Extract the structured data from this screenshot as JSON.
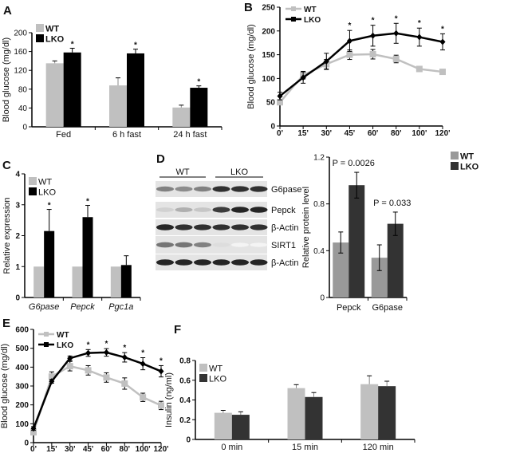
{
  "figure": {
    "panel_labels": [
      "A",
      "B",
      "C",
      "D",
      "E",
      "F"
    ]
  },
  "chart_data": [
    {
      "panel": "A",
      "type": "bar",
      "ylabel": "Blood glucose (mg/dl)",
      "ylim": [
        0,
        200
      ],
      "yticks": [
        "0",
        "40",
        "80",
        "120",
        "160",
        "200"
      ],
      "categories": [
        "Fed",
        "6 h fast",
        "24 h fast"
      ],
      "series": [
        {
          "name": "WT",
          "color": "#c0c0c0",
          "values": [
            135,
            88,
            41
          ],
          "errors": [
            5,
            16,
            5
          ]
        },
        {
          "name": "LKO",
          "color": "#000000",
          "values": [
            158,
            156,
            83
          ],
          "errors": [
            9,
            9,
            4
          ]
        }
      ],
      "significance": {
        "marker": "*",
        "series": "LKO",
        "categories": [
          0,
          1,
          2
        ]
      },
      "legend": "top-left",
      "grid": false
    },
    {
      "panel": "B",
      "type": "line",
      "ylabel": "Blood glucose (mg/dl)",
      "ylim": [
        0,
        250
      ],
      "yticks": [
        "0",
        "50",
        "100",
        "150",
        "200",
        "250"
      ],
      "x": [
        "0'",
        "15'",
        "30'",
        "45'",
        "60'",
        "80'",
        "100'",
        "120'"
      ],
      "series": [
        {
          "name": "WT",
          "color": "#c0c0c0",
          "marker": "square",
          "values": [
            50,
            107,
            130,
            150,
            151,
            141,
            120,
            114
          ],
          "errors": [
            5,
            8,
            10,
            10,
            10,
            8,
            5,
            5
          ]
        },
        {
          "name": "LKO",
          "color": "#000000",
          "marker": "diamond",
          "values": [
            63,
            102,
            136,
            179,
            190,
            195,
            187,
            177
          ],
          "errors": [
            8,
            12,
            17,
            22,
            22,
            21,
            19,
            17
          ]
        }
      ],
      "significance": {
        "marker": "*",
        "series": "LKO",
        "indices": [
          3,
          4,
          5,
          6,
          7
        ]
      },
      "legend": "top-left",
      "grid": false
    },
    {
      "panel": "C",
      "type": "bar",
      "ylabel": "Relative expression",
      "ylim": [
        0,
        4
      ],
      "yticks": [
        "0",
        "1",
        "2",
        "3",
        "4"
      ],
      "categories": [
        "G6pase",
        "Pepck",
        "Pgc1a"
      ],
      "italic_categories": true,
      "series": [
        {
          "name": "WT",
          "color": "#c0c0c0",
          "values": [
            1,
            1,
            1
          ],
          "errors": [
            0,
            0,
            0
          ]
        },
        {
          "name": "LKO",
          "color": "#000000",
          "values": [
            2.15,
            2.6,
            1.05
          ],
          "errors": [
            0.7,
            0.38,
            0.3
          ]
        }
      ],
      "significance": {
        "marker": "*",
        "series": "LKO",
        "categories": [
          0,
          1
        ]
      },
      "legend": "top-left",
      "grid": false
    },
    {
      "panel": "D",
      "type": "bar",
      "ylabel": "Relative protein level",
      "ylim": [
        0,
        1.2
      ],
      "yticks": [
        "0",
        "0.4",
        "0.8",
        "1.2"
      ],
      "categories": [
        "Pepck",
        "G6pase"
      ],
      "series": [
        {
          "name": "WT",
          "color": "#999999",
          "values": [
            0.47,
            0.34
          ],
          "errors": [
            0.09,
            0.11
          ]
        },
        {
          "name": "LKO",
          "color": "#333333",
          "values": [
            0.96,
            0.63
          ],
          "errors": [
            0.11,
            0.1
          ]
        }
      ],
      "annotations": [
        "P = 0.0026",
        "P = 0.033"
      ],
      "legend": "top-right",
      "grid": false
    },
    {
      "panel": "E",
      "type": "line",
      "ylabel": "Blood glucose (mg/dl)",
      "ylim": [
        0,
        600
      ],
      "yticks": [
        "0",
        "100",
        "200",
        "300",
        "400",
        "500",
        "600"
      ],
      "x": [
        "0'",
        "15'",
        "30'",
        "45'",
        "60'",
        "80'",
        "100'",
        "120'"
      ],
      "series": [
        {
          "name": "WT",
          "color": "#c0c0c0",
          "marker": "square",
          "values": [
            55,
            350,
            405,
            383,
            345,
            313,
            240,
            197
          ],
          "errors": [
            10,
            25,
            25,
            25,
            25,
            30,
            22,
            22
          ]
        },
        {
          "name": "LKO",
          "color": "#000000",
          "marker": "diamond",
          "values": [
            75,
            325,
            447,
            475,
            478,
            452,
            418,
            378
          ],
          "errors": [
            10,
            10,
            12,
            18,
            20,
            25,
            32,
            30
          ]
        }
      ],
      "significance": {
        "marker": "*",
        "series": "LKO",
        "indices": [
          3,
          4,
          5,
          6,
          7
        ]
      },
      "legend": "top-left",
      "grid": false
    },
    {
      "panel": "F",
      "type": "bar",
      "ylabel": "Insulin (ng/ml)",
      "ylim": [
        0,
        0.8
      ],
      "yticks": [
        "0",
        "0.2",
        "0.4",
        "0.6",
        "0.8"
      ],
      "categories": [
        "0 min",
        "15 min",
        "120 min"
      ],
      "series": [
        {
          "name": "WT",
          "color": "#c0c0c0",
          "values": [
            0.27,
            0.52,
            0.56
          ],
          "errors": [
            0.025,
            0.035,
            0.085
          ]
        },
        {
          "name": "LKO",
          "color": "#333333",
          "values": [
            0.25,
            0.43,
            0.54
          ],
          "errors": [
            0.03,
            0.045,
            0.05
          ]
        }
      ],
      "legend": "top-left",
      "grid": false
    }
  ],
  "blot": {
    "groups": [
      "WT",
      "LKO"
    ],
    "rows": [
      {
        "label": "G6pase",
        "intensity": [
          0.55,
          0.5,
          0.55,
          0.9,
          0.9,
          0.9
        ]
      },
      {
        "label": "Pepck",
        "intensity": [
          0.2,
          0.35,
          0.25,
          0.85,
          0.95,
          0.95
        ]
      },
      {
        "label": "β-Actin",
        "intensity": [
          0.95,
          0.9,
          0.9,
          0.9,
          0.9,
          0.9
        ]
      },
      {
        "label": "SIRT1",
        "intensity": [
          0.6,
          0.6,
          0.55,
          0.15,
          0.05,
          0.05
        ]
      },
      {
        "label": "β-Actin",
        "intensity": [
          0.95,
          0.95,
          0.95,
          0.95,
          0.95,
          0.95
        ]
      }
    ]
  }
}
